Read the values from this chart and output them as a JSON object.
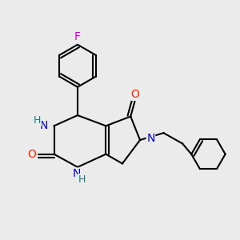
{
  "background_color": "#ebebeb",
  "bond_color": "#000000",
  "bond_width": 1.5,
  "figsize": [
    3.0,
    3.0
  ],
  "dpi": 100,
  "atoms": {
    "F": {
      "color": "#cc00cc",
      "fontsize": 10
    },
    "O": {
      "color": "#ff2200",
      "fontsize": 10
    },
    "N": {
      "color": "#0000dd",
      "fontsize": 10
    },
    "NH": {
      "color": "#0000dd",
      "fontsize": 10
    },
    "H": {
      "color": "#008888",
      "fontsize": 9
    }
  }
}
